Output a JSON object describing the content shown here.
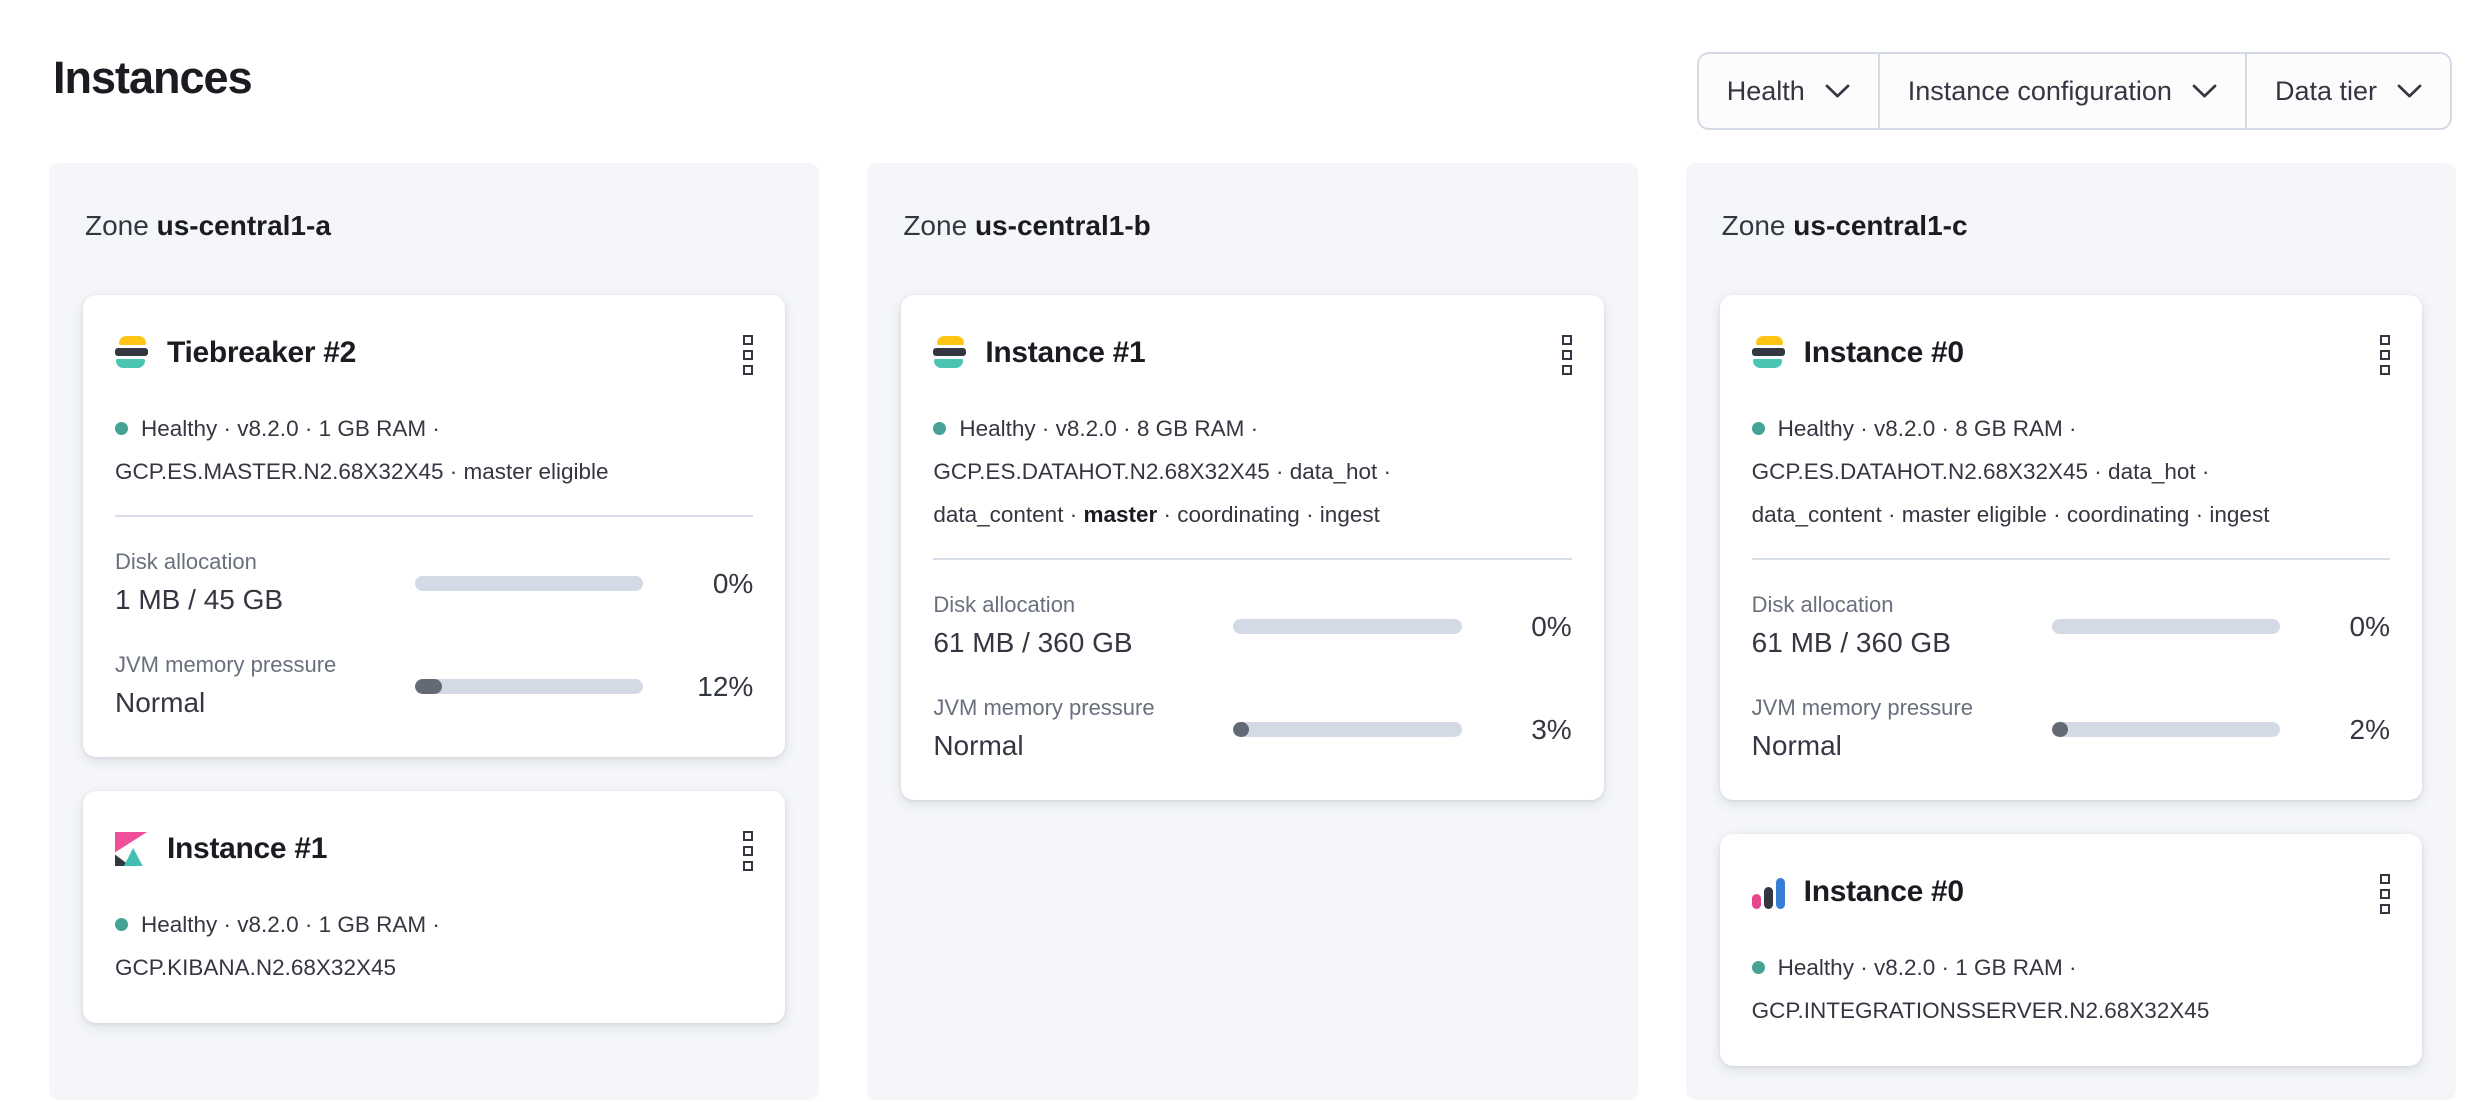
{
  "page": {
    "title": "Instances"
  },
  "colors": {
    "health_dot": "#45a294",
    "bar_track": "#d3dae6",
    "bar_fill": "#636a75",
    "panel_bg": "#f4f6fa",
    "es_yellow": "#fec514",
    "es_dark": "#343741",
    "es_teal": "#49c5b1",
    "kibana_pink": "#f04e98",
    "kibana_dark": "#343741",
    "kibana_teal": "#40bfb2",
    "integrations_pink": "#e8488b",
    "integrations_dark": "#343741",
    "integrations_blue": "#387dd6"
  },
  "icons": {
    "menu": "boxes-vertical-icon",
    "dropdown": "chevron-down-icon",
    "health": "health-dot-icon"
  },
  "filters": {
    "items": [
      {
        "label": "Health"
      },
      {
        "label": "Instance configuration"
      },
      {
        "label": "Data tier"
      }
    ]
  },
  "zones": [
    {
      "label_prefix": "Zone",
      "name": "us-central1-a",
      "cards": [
        {
          "product": "elasticsearch",
          "title": "Tiebreaker #2",
          "meta_lines": [
            {
              "dot": true,
              "segments": [
                {
                  "text": "Healthy · v8.2.0 · 1 GB RAM ·"
                }
              ]
            },
            {
              "dot": false,
              "segments": [
                {
                  "text": "GCP.ES.MASTER.N2.68X32X45 · master eligible"
                }
              ]
            }
          ],
          "metrics": [
            {
              "label": "Disk allocation",
              "value": "1 MB / 45 GB",
              "percent": "0%",
              "fill": 0
            },
            {
              "label": "JVM memory pressure",
              "value": "Normal",
              "percent": "12%",
              "fill": 12
            }
          ]
        },
        {
          "product": "kibana",
          "title": "Instance #1",
          "meta_lines": [
            {
              "dot": true,
              "segments": [
                {
                  "text": "Healthy · v8.2.0 · 1 GB RAM ·"
                }
              ]
            },
            {
              "dot": false,
              "segments": [
                {
                  "text": "GCP.KIBANA.N2.68X32X45"
                }
              ]
            }
          ],
          "metrics": []
        }
      ]
    },
    {
      "label_prefix": "Zone",
      "name": "us-central1-b",
      "cards": [
        {
          "product": "elasticsearch",
          "title": "Instance #1",
          "meta_lines": [
            {
              "dot": true,
              "segments": [
                {
                  "text": "Healthy · v8.2.0 · 8 GB RAM ·"
                }
              ]
            },
            {
              "dot": false,
              "segments": [
                {
                  "text": "GCP.ES.DATAHOT.N2.68X32X45 · data_hot ·"
                }
              ]
            },
            {
              "dot": false,
              "segments": [
                {
                  "text": "data_content · "
                },
                {
                  "text": "master",
                  "bold": true
                },
                {
                  "text": " · coordinating · ingest"
                }
              ]
            }
          ],
          "metrics": [
            {
              "label": "Disk allocation",
              "value": "61 MB / 360 GB",
              "percent": "0%",
              "fill": 0
            },
            {
              "label": "JVM memory pressure",
              "value": "Normal",
              "percent": "3%",
              "fill": 3
            }
          ]
        }
      ]
    },
    {
      "label_prefix": "Zone",
      "name": "us-central1-c",
      "cards": [
        {
          "product": "elasticsearch",
          "title": "Instance #0",
          "meta_lines": [
            {
              "dot": true,
              "segments": [
                {
                  "text": "Healthy · v8.2.0 · 8 GB RAM ·"
                }
              ]
            },
            {
              "dot": false,
              "segments": [
                {
                  "text": "GCP.ES.DATAHOT.N2.68X32X45 · data_hot ·"
                }
              ]
            },
            {
              "dot": false,
              "segments": [
                {
                  "text": "data_content · master eligible · coordinating · ingest"
                }
              ]
            }
          ],
          "metrics": [
            {
              "label": "Disk allocation",
              "value": "61 MB / 360 GB",
              "percent": "0%",
              "fill": 0
            },
            {
              "label": "JVM memory pressure",
              "value": "Normal",
              "percent": "2%",
              "fill": 2
            }
          ]
        },
        {
          "product": "integrations_server",
          "title": "Instance #0",
          "meta_lines": [
            {
              "dot": true,
              "segments": [
                {
                  "text": "Healthy · v8.2.0 · 1 GB RAM ·"
                }
              ]
            },
            {
              "dot": false,
              "segments": [
                {
                  "text": "GCP.INTEGRATIONSSERVER.N2.68X32X45"
                }
              ]
            }
          ],
          "metrics": []
        }
      ]
    }
  ]
}
